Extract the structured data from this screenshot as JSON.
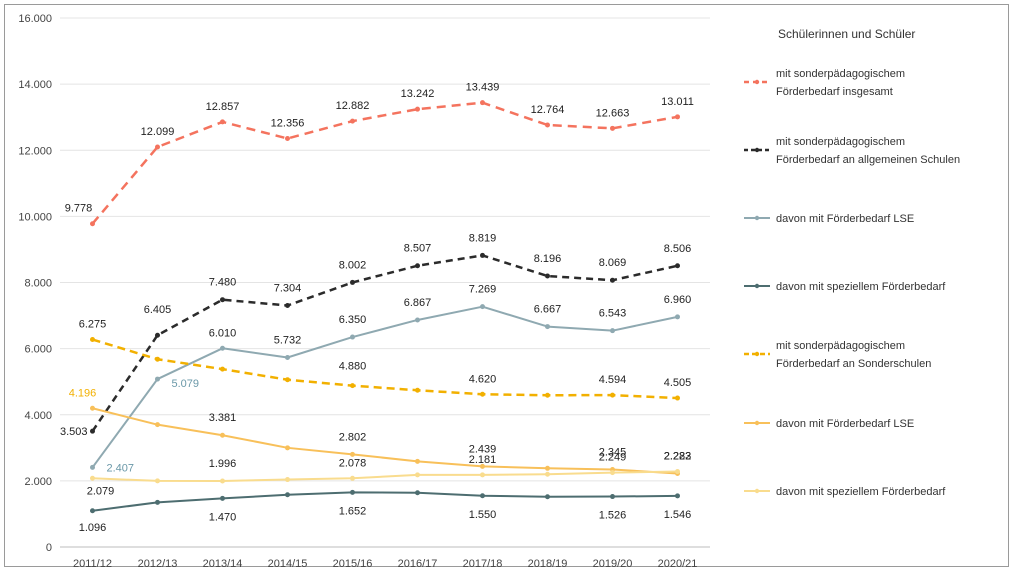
{
  "chart_data": {
    "type": "line",
    "title": "",
    "xlabel": "",
    "ylabel": "",
    "ylim": [
      0,
      16000
    ],
    "yticks": [
      {
        "v": 0,
        "t": "0"
      },
      {
        "v": 2000,
        "t": "2.000"
      },
      {
        "v": 4000,
        "t": "4.000"
      },
      {
        "v": 6000,
        "t": "6.000"
      },
      {
        "v": 8000,
        "t": "8.000"
      },
      {
        "v": 10000,
        "t": "10.000"
      },
      {
        "v": 12000,
        "t": "12.000"
      },
      {
        "v": 14000,
        "t": "14.000"
      },
      {
        "v": 16000,
        "t": "16.000"
      }
    ],
    "grid": true,
    "legend_title": "Schülerinnen und Schüler",
    "legend_position": "right",
    "categories": [
      "2011/12",
      "2012/13",
      "2013/14",
      "2014/15",
      "2015/16",
      "2016/17",
      "2017/18",
      "2018/19",
      "2019/20",
      "2020/21"
    ],
    "series": [
      {
        "name": "mit sonderpädagogischem Förderbedarf insgesamt",
        "color": "#f4735e",
        "dash": "9,6",
        "width": 2.5,
        "values": [
          9778,
          12099,
          12857,
          12356,
          12882,
          13242,
          13439,
          12764,
          12663,
          13011
        ],
        "labels": [
          "9.778",
          "12.099",
          "12.857",
          "12.356",
          "12.882",
          "13.242",
          "13.439",
          "12.764",
          "12.663",
          "13.011"
        ]
      },
      {
        "name": "mit sonderpädagogischem Förderbedarf an allgemeinen Schulen",
        "color": "#2b2b2b",
        "dash": "7,5",
        "width": 2.5,
        "values": [
          3503,
          6405,
          7480,
          7304,
          8002,
          8507,
          8819,
          8196,
          8069,
          8506
        ],
        "labels": [
          "3.503",
          "6.405",
          "7.480",
          "7.304",
          "8.002",
          "8.507",
          "8.819",
          "8.196",
          "8.069",
          "8.506"
        ]
      },
      {
        "name": "davon mit Förderbedarf LSE",
        "color": "#8fa9b1",
        "dash": "",
        "width": 2,
        "values": [
          2407,
          5079,
          6010,
          5732,
          6350,
          6867,
          7269,
          6667,
          6543,
          6960
        ],
        "labels": [
          "2.407",
          "5.079",
          "6.010",
          "5.732",
          "6.350",
          "6.867",
          "7.269",
          "6.667",
          "6.543",
          "6.960"
        ]
      },
      {
        "name": "davon mit speziellem Förderbedarf",
        "color": "#4d6d70",
        "dash": "",
        "width": 2,
        "values": [
          1096,
          1350,
          1470,
          1580,
          1652,
          1640,
          1550,
          1520,
          1526,
          1546
        ],
        "labels": [
          "1.096",
          "",
          "1.470",
          "",
          "1.652",
          "",
          "1.550",
          "",
          "1.526",
          "1.546"
        ]
      },
      {
        "name": "mit sonderpädagogischem Förderbedarf an Sonderschulen",
        "color": "#f2b000",
        "dash": "8,5",
        "width": 2.5,
        "values": [
          6275,
          5680,
          5380,
          5060,
          4880,
          4740,
          4620,
          4590,
          4594,
          4505
        ],
        "labels": [
          "6.275",
          "",
          "",
          "",
          "4.880",
          "",
          "4.620",
          "",
          "4.594",
          "4.505"
        ]
      },
      {
        "name": "davon mit Förderbedarf LSE",
        "color": "#f8c05a",
        "dash": "",
        "width": 2,
        "values": [
          4196,
          3700,
          3381,
          3000,
          2802,
          2590,
          2439,
          2380,
          2345,
          2223
        ],
        "labels": [
          "4.196",
          "",
          "3.381",
          "",
          "2.802",
          "",
          "2.439",
          "",
          "2.345",
          "2.223"
        ]
      },
      {
        "name": "davon mit speziellem Förderbedarf",
        "color": "#f9dc8e",
        "dash": "",
        "width": 2,
        "values": [
          2079,
          2000,
          1996,
          2040,
          2078,
          2181,
          2181,
          2200,
          2249,
          2282
        ],
        "labels": [
          "2.079",
          "",
          "1.996",
          "",
          "2.078",
          "",
          "2.181",
          "",
          "2.249",
          "2.282"
        ]
      }
    ]
  }
}
